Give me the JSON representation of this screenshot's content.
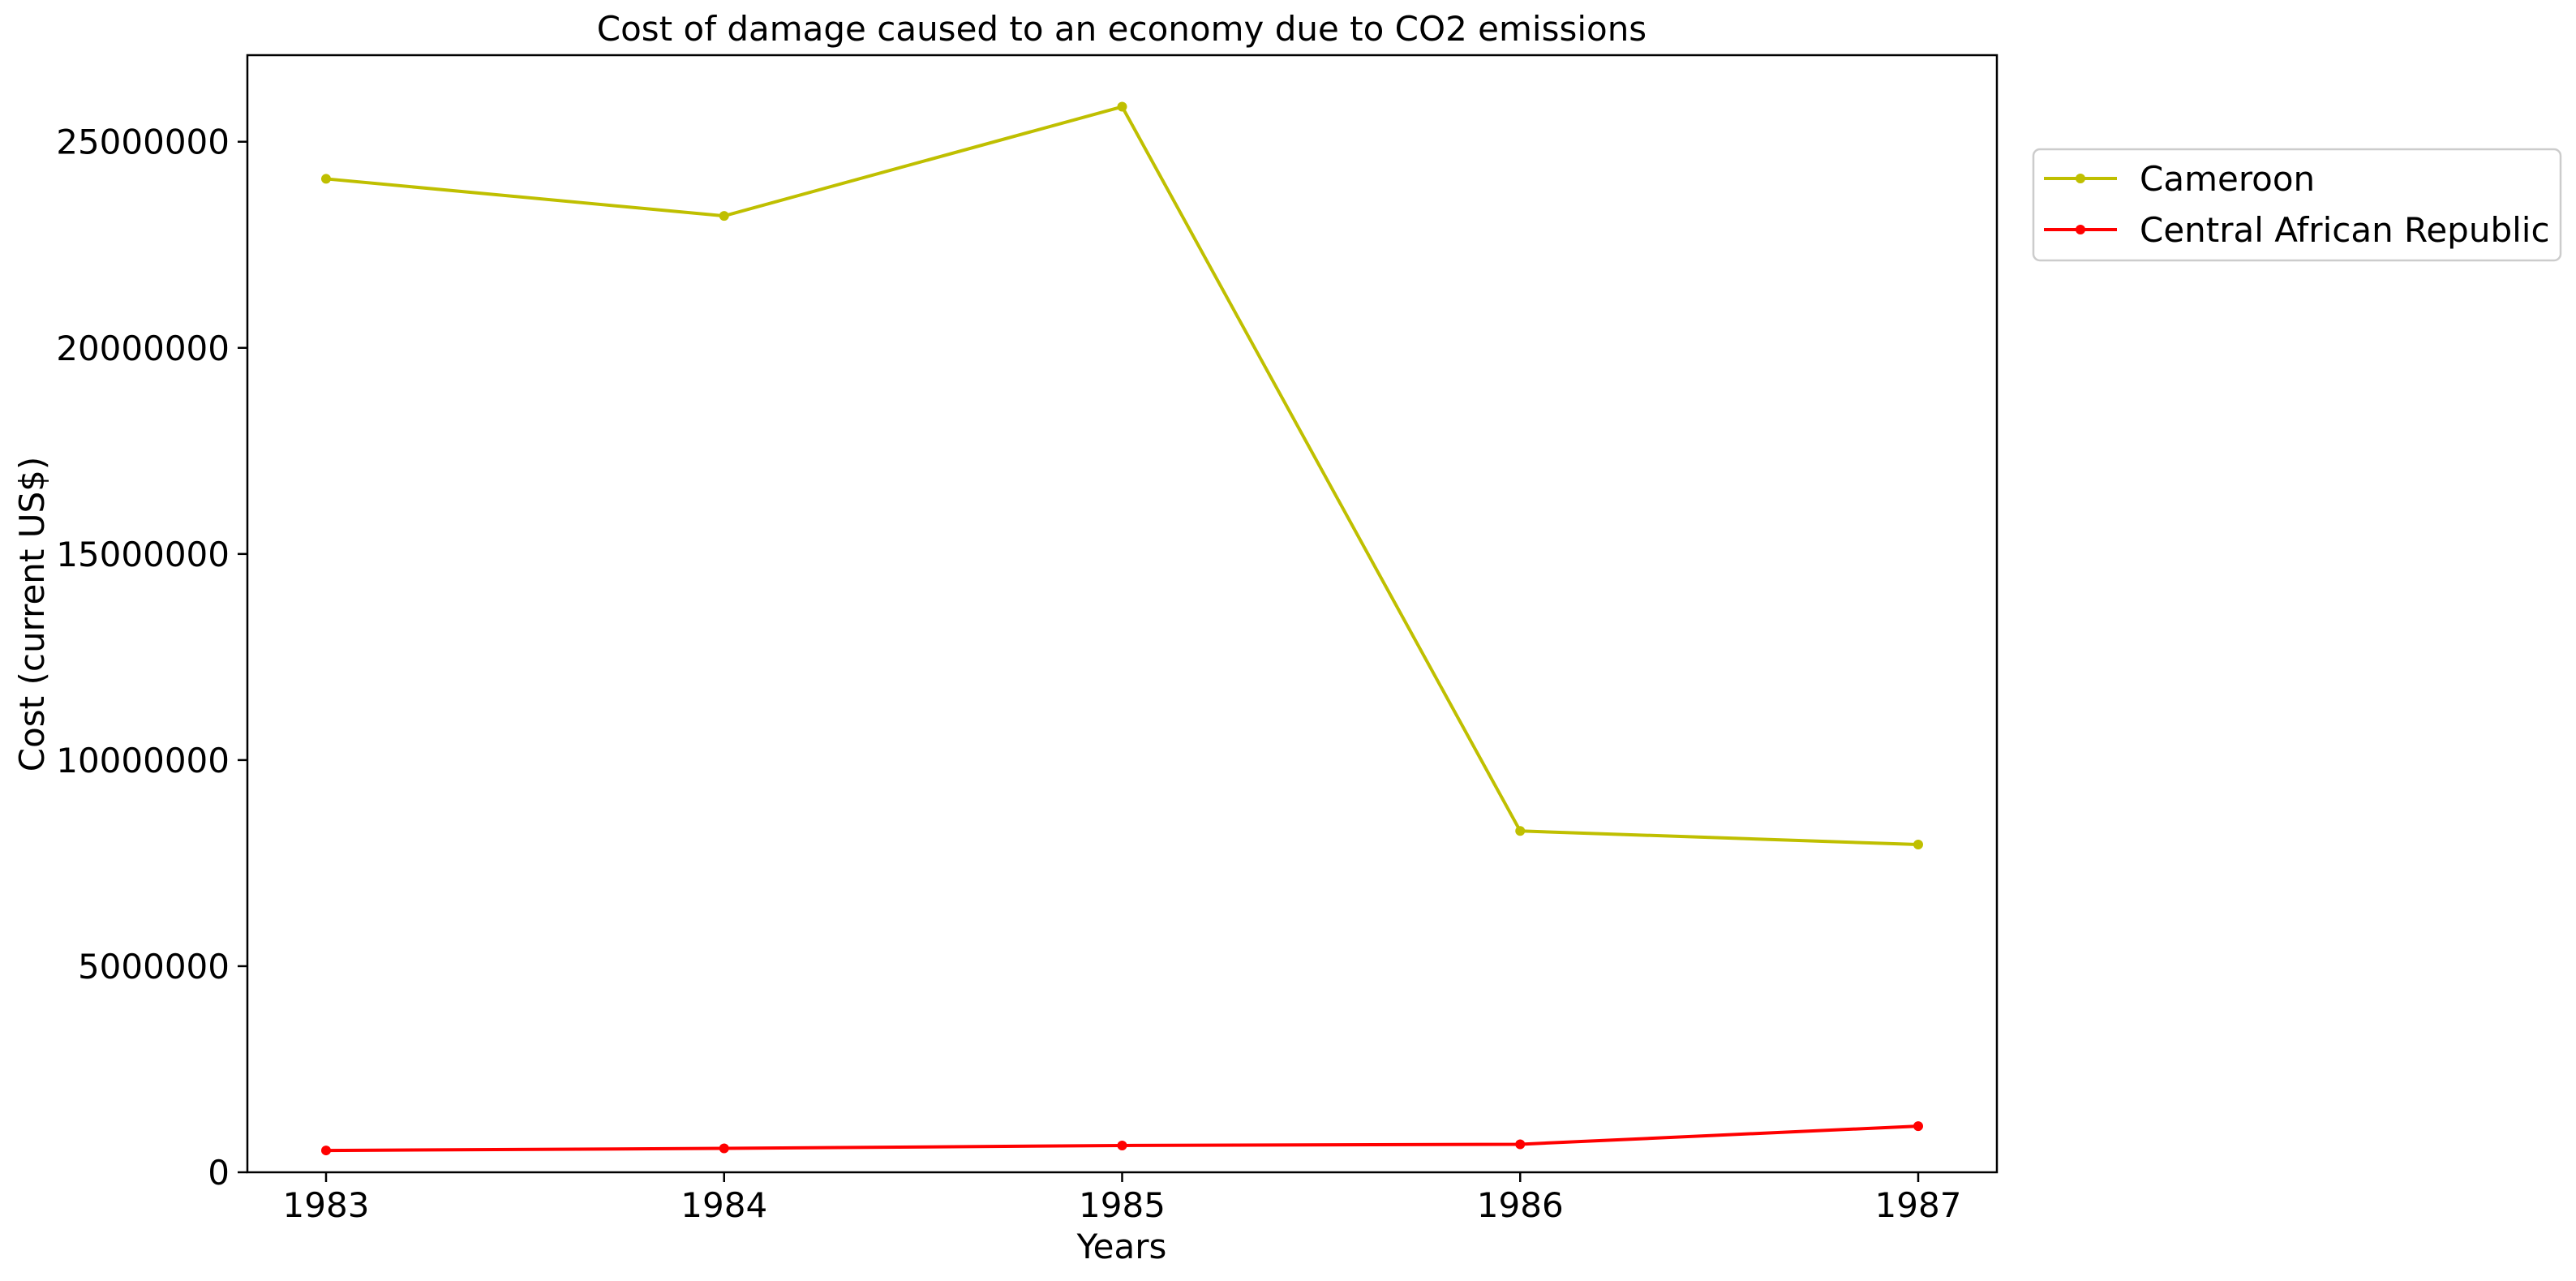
{
  "chart_data": {
    "type": "line",
    "title": "Cost of damage caused to an economy due to CO2 emissions",
    "xlabel": "Years",
    "ylabel": "Cost (current US$)",
    "x": [
      "1983",
      "1984",
      "1985",
      "1986",
      "1987"
    ],
    "ylim": [
      0,
      27100000
    ],
    "yticks": [
      "0",
      "5000000",
      "10000000",
      "15000000",
      "20000000",
      "25000000"
    ],
    "grid": false,
    "legend_position": "outside-top-right",
    "series": [
      {
        "name": "Cameroon",
        "color": "#bfbf00",
        "values": [
          24100000,
          23200000,
          25850000,
          8280000,
          7950000
        ]
      },
      {
        "name": "Central African Republic",
        "color": "#ff0000",
        "values": [
          530000,
          580000,
          650000,
          680000,
          1120000
        ]
      }
    ]
  }
}
